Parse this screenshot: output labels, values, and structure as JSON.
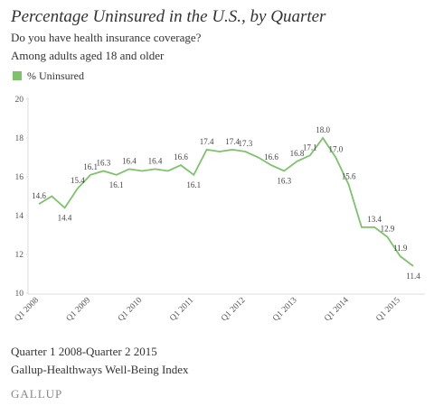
{
  "chart_data": {
    "type": "line",
    "title": "Percentage Uninsured in the U.S., by Quarter",
    "subtitle": [
      "Do you have health insurance coverage?",
      "Among adults aged 18 and older"
    ],
    "notes": [
      "Quarter 1 2008-Quarter 2 2015",
      "Gallup-Healthways Well-Being Index"
    ],
    "brand": "GALLUP",
    "categories": [
      "Q1 2008",
      null,
      null,
      null,
      "Q1 2009",
      null,
      null,
      null,
      "Q1 2010",
      null,
      null,
      null,
      "Q1 2011",
      null,
      null,
      null,
      "Q1 2012",
      null,
      null,
      null,
      "Q1 2013",
      null,
      null,
      null,
      "Q1 2014",
      null,
      null,
      null,
      "Q1 2015",
      null
    ],
    "series": [
      {
        "name": "% Uninsured",
        "color": "#7dc36b",
        "values": [
          14.6,
          15.0,
          14.4,
          15.4,
          16.1,
          16.3,
          16.1,
          16.4,
          16.3,
          16.4,
          16.3,
          16.6,
          16.1,
          17.4,
          17.3,
          17.4,
          17.3,
          17.0,
          16.6,
          16.3,
          16.8,
          17.1,
          18.0,
          17.0,
          15.6,
          13.4,
          13.4,
          12.9,
          11.9,
          11.4
        ],
        "value_labels": [
          "14.6",
          null,
          "14.4",
          "15.4",
          "16.1",
          "16.3",
          "16.1",
          "16.4",
          null,
          "16.4",
          null,
          "16.6",
          "16.1",
          "17.4",
          null,
          "17.4",
          "17.3",
          null,
          "16.6",
          "16.3",
          "16.8",
          "17.1",
          "18.0",
          "17.0",
          "15.6",
          null,
          "13.4",
          "12.9",
          "11.9",
          "11.4"
        ]
      }
    ],
    "ylim": [
      10,
      20
    ],
    "yticks": [
      10,
      12,
      14,
      16,
      18,
      20
    ],
    "grid": false,
    "legend": "top-left"
  }
}
